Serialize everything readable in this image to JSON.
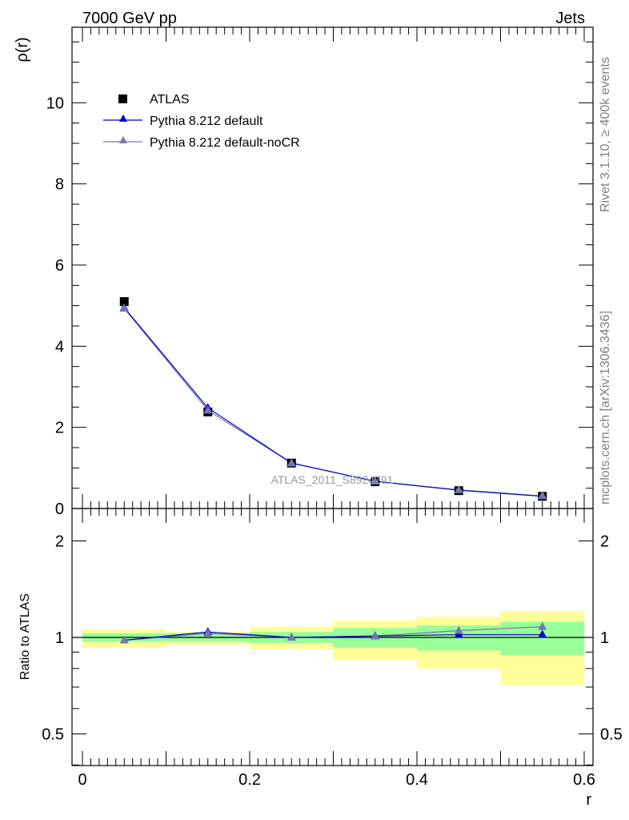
{
  "header": {
    "left": "7000 GeV pp",
    "right": "Jets"
  },
  "side_texts": {
    "rivet": "Rivet 3.1.10, ≥ 400k events",
    "mcplots": "mcplots.cern.ch [arXiv:1306.3436]"
  },
  "colors": {
    "data": "#000000",
    "pythia_default": "#0000cc",
    "pythia_nocr": "#7777aa",
    "band_inner": "#99ff99",
    "band_outer": "#ffff99"
  },
  "chart_data": [
    {
      "type": "line",
      "panel": "main",
      "ylabel": "ρ(r)",
      "xlim": [
        0.0,
        0.6
      ],
      "ylim": [
        0,
        12
      ],
      "yticks": [
        0,
        2,
        4,
        6,
        8,
        10
      ],
      "ytick_labels": [
        "0",
        "2",
        "4",
        "6",
        "8",
        "10"
      ],
      "watermark": "ATLAS_2011_S8924791",
      "legend": {
        "position": "top-left",
        "entries": [
          "ATLAS",
          "Pythia 8.212 default",
          "Pythia 8.212 default-noCR"
        ]
      },
      "x": [
        0.05,
        0.15,
        0.25,
        0.35,
        0.45,
        0.55
      ],
      "series": [
        {
          "name": "ATLAS",
          "marker": "square",
          "values": [
            5.1,
            2.38,
            1.12,
            0.66,
            0.44,
            0.3
          ]
        },
        {
          "name": "Pythia 8.212 default",
          "marker": "triangle",
          "values": [
            4.95,
            2.48,
            1.12,
            0.67,
            0.45,
            0.3
          ]
        },
        {
          "name": "Pythia 8.212 default-noCR",
          "marker": "triangle",
          "values": [
            4.93,
            2.42,
            1.12,
            0.67,
            0.46,
            0.31
          ]
        }
      ]
    },
    {
      "type": "line",
      "panel": "ratio",
      "ylabel": "Ratio to ATLAS",
      "xlabel": "r",
      "xlim": [
        0.0,
        0.6
      ],
      "ylim": [
        0.3,
        2.3
      ],
      "xticks": [
        0,
        0.2,
        0.4,
        0.6
      ],
      "xtick_labels": [
        "0",
        "0.2",
        "0.4",
        "0.6"
      ],
      "yticks": [
        0.5,
        1,
        2
      ],
      "ytick_labels": [
        "0.5",
        "1",
        "2"
      ],
      "x": [
        0.05,
        0.15,
        0.25,
        0.35,
        0.45,
        0.55
      ],
      "bands": [
        {
          "xlo": 0.0,
          "xhi": 0.1,
          "inner": [
            0.97,
            1.03
          ],
          "outer": [
            0.93,
            1.06
          ]
        },
        {
          "xlo": 0.1,
          "xhi": 0.2,
          "inner": [
            0.97,
            1.03
          ],
          "outer": [
            0.95,
            1.04
          ]
        },
        {
          "xlo": 0.2,
          "xhi": 0.3,
          "inner": [
            0.96,
            1.04
          ],
          "outer": [
            0.92,
            1.08
          ]
        },
        {
          "xlo": 0.3,
          "xhi": 0.4,
          "inner": [
            0.93,
            1.07
          ],
          "outer": [
            0.85,
            1.13
          ]
        },
        {
          "xlo": 0.4,
          "xhi": 0.5,
          "inner": [
            0.91,
            1.09
          ],
          "outer": [
            0.8,
            1.16
          ]
        },
        {
          "xlo": 0.5,
          "xhi": 0.6,
          "inner": [
            0.88,
            1.12
          ],
          "outer": [
            0.71,
            1.21
          ]
        }
      ],
      "series": [
        {
          "name": "Pythia 8.212 default",
          "values": [
            0.98,
            1.04,
            1.0,
            1.01,
            1.02,
            1.02
          ]
        },
        {
          "name": "Pythia 8.212 default-noCR",
          "values": [
            0.98,
            1.03,
            1.0,
            1.01,
            1.05,
            1.08
          ]
        }
      ]
    }
  ]
}
